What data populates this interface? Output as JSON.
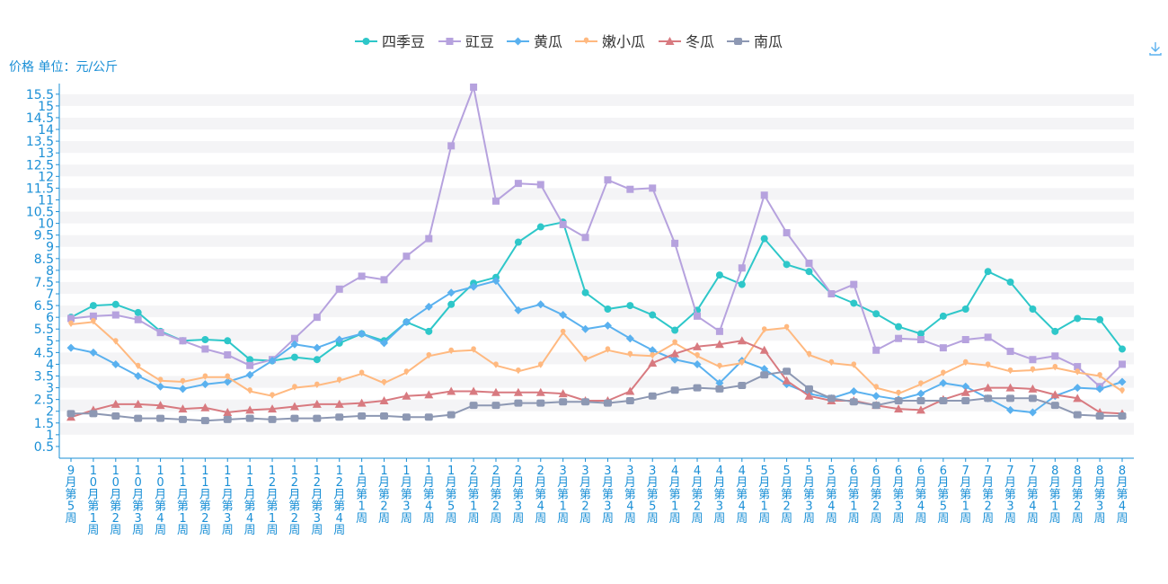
{
  "ylabel": "价格 单位：元/公斤",
  "chart_data": {
    "type": "line",
    "ylabel": "价格 单位：元/公斤",
    "ylim": [
      0,
      15.8
    ],
    "y_ticks": [
      "0.5",
      "1",
      "1.5",
      "2",
      "2.5",
      "3",
      "3.5",
      "4",
      "4.5",
      "5",
      "5.5",
      "6",
      "6.5",
      "7",
      "7.5",
      "8",
      "8.5",
      "9",
      "9.5",
      "10",
      "10.5",
      "11",
      "11.5",
      "12",
      "12.5",
      "13",
      "13.5",
      "14",
      "14.5",
      "15",
      "15.5"
    ],
    "grid": true,
    "legend_position": "top-center",
    "categories": [
      "9月第5周",
      "10月第1周",
      "10月第2周",
      "10月第3周",
      "10月第4周",
      "11月第1周",
      "11月第2周",
      "11月第3周",
      "11月第4周",
      "12月第1周",
      "12月第2周",
      "12月第3周",
      "12月第4周",
      "1月第1周",
      "1月第2周",
      "1月第3周",
      "1月第4周",
      "1月第5周",
      "2月第1周",
      "2月第2周",
      "2月第3周",
      "2月第4周",
      "3月第1周",
      "3月第2周",
      "3月第3周",
      "3月第4周",
      "3月第5周",
      "4月第1周",
      "4月第2周",
      "4月第3周",
      "4月第4周",
      "5月第1周",
      "5月第2周",
      "5月第3周",
      "5月第4周",
      "6月第1周",
      "6月第2周",
      "6月第3周",
      "6月第4周",
      "6月第5周",
      "7月第1周",
      "7月第2周",
      "7月第3周",
      "7月第4周",
      "8月第1周",
      "8月第2周",
      "8月第3周",
      "8月第4周"
    ],
    "series": [
      {
        "name": "四季豆",
        "color": "#2ec7c9",
        "marker": "circle",
        "values": [
          6.0,
          6.5,
          6.55,
          6.2,
          5.4,
          5.0,
          5.05,
          5.0,
          4.2,
          4.15,
          4.3,
          4.2,
          4.9,
          5.3,
          5.0,
          5.8,
          5.4,
          6.55,
          7.45,
          7.7,
          9.2,
          9.85,
          10.05,
          7.05,
          6.35,
          6.5,
          6.1,
          5.45,
          6.3,
          7.8,
          7.4,
          9.35,
          8.25,
          7.95,
          7.0,
          6.6,
          6.15,
          5.6,
          5.3,
          6.05,
          6.35,
          7.95,
          7.5,
          6.35,
          5.4,
          5.95,
          5.9,
          4.65
        ]
      },
      {
        "name": "豇豆",
        "color": "#b6a2de",
        "marker": "square",
        "values": [
          5.95,
          6.05,
          6.1,
          5.9,
          5.35,
          5.0,
          4.65,
          4.4,
          3.95,
          4.2,
          5.1,
          6.0,
          7.2,
          7.75,
          7.6,
          8.6,
          9.35,
          13.3,
          15.8,
          10.95,
          11.7,
          11.65,
          9.95,
          9.4,
          11.85,
          11.45,
          11.5,
          9.15,
          6.05,
          5.4,
          8.1,
          11.2,
          9.6,
          8.3,
          7.0,
          7.4,
          4.6,
          5.1,
          5.05,
          4.7,
          5.05,
          5.15,
          4.55,
          4.2,
          4.35,
          3.9,
          3.05,
          4.0
        ]
      },
      {
        "name": "黄瓜",
        "color": "#5ab1ef",
        "marker": "diamond",
        "values": [
          4.7,
          4.5,
          4.0,
          3.5,
          3.05,
          2.95,
          3.15,
          3.25,
          3.55,
          4.15,
          4.85,
          4.7,
          5.05,
          5.3,
          4.9,
          5.8,
          6.45,
          7.05,
          7.3,
          7.55,
          6.3,
          6.55,
          6.1,
          5.5,
          5.65,
          5.1,
          4.6,
          4.2,
          4.0,
          3.2,
          4.15,
          3.8,
          3.15,
          2.75,
          2.55,
          2.85,
          2.65,
          2.5,
          2.75,
          3.2,
          3.05,
          2.55,
          2.05,
          1.95,
          2.65,
          3.0,
          2.95,
          3.25
        ]
      },
      {
        "name": "嫩小瓜",
        "color": "#ffb980",
        "marker": "pin",
        "values": [
          5.7,
          5.8,
          4.95,
          3.9,
          3.3,
          3.25,
          3.45,
          3.45,
          2.85,
          2.65,
          3.0,
          3.1,
          3.3,
          3.6,
          3.2,
          3.65,
          4.35,
          4.55,
          4.6,
          3.95,
          3.7,
          3.95,
          5.35,
          4.2,
          4.6,
          4.4,
          4.35,
          4.9,
          4.35,
          3.9,
          4.05,
          5.45,
          5.55,
          4.4,
          4.05,
          3.95,
          3.0,
          2.75,
          3.15,
          3.6,
          4.05,
          3.95,
          3.7,
          3.75,
          3.85,
          3.65,
          3.5,
          2.85
        ]
      },
      {
        "name": "冬瓜",
        "color": "#d87a80",
        "marker": "triangle",
        "values": [
          1.75,
          2.05,
          2.3,
          2.3,
          2.25,
          2.1,
          2.15,
          1.95,
          2.05,
          2.1,
          2.2,
          2.3,
          2.3,
          2.35,
          2.45,
          2.65,
          2.7,
          2.85,
          2.85,
          2.8,
          2.8,
          2.8,
          2.75,
          2.45,
          2.45,
          2.85,
          4.05,
          4.45,
          4.75,
          4.85,
          5.0,
          4.6,
          3.3,
          2.65,
          2.45,
          2.45,
          2.25,
          2.1,
          2.05,
          2.5,
          2.8,
          3.0,
          3.0,
          2.95,
          2.7,
          2.55,
          1.95,
          1.9
        ]
      },
      {
        "name": "南瓜",
        "color": "#8d98b3",
        "marker": "roundrect",
        "values": [
          1.9,
          1.9,
          1.8,
          1.7,
          1.7,
          1.65,
          1.6,
          1.65,
          1.7,
          1.65,
          1.7,
          1.7,
          1.75,
          1.8,
          1.8,
          1.75,
          1.75,
          1.85,
          2.25,
          2.25,
          2.35,
          2.35,
          2.4,
          2.4,
          2.35,
          2.45,
          2.65,
          2.9,
          3.0,
          2.95,
          3.1,
          3.55,
          3.7,
          2.95,
          2.55,
          2.4,
          2.25,
          2.45,
          2.45,
          2.45,
          2.45,
          2.55,
          2.55,
          2.55,
          2.25,
          1.85,
          1.8,
          1.8
        ]
      }
    ]
  }
}
